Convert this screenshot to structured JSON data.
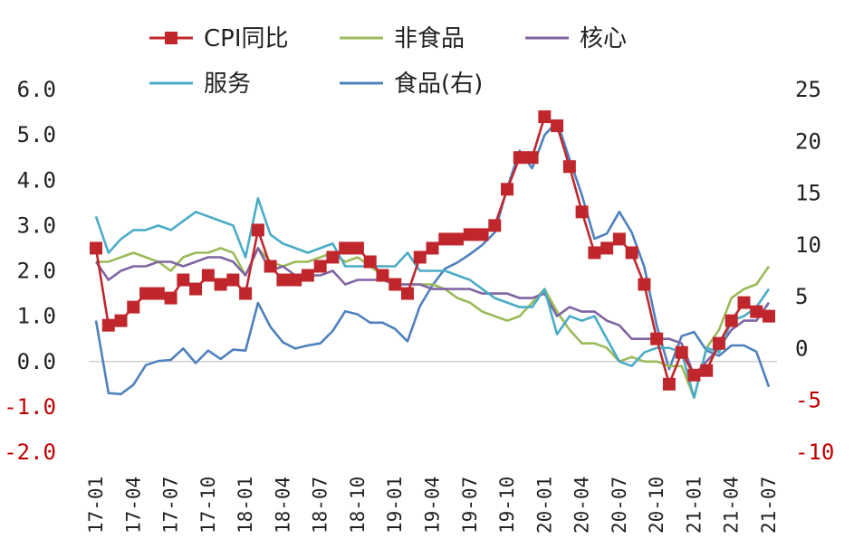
{
  "chart_data": {
    "type": "line",
    "title": "",
    "xlabel": "",
    "ylabel": "",
    "x": [
      "17-01",
      "17-02",
      "17-03",
      "17-04",
      "17-05",
      "17-06",
      "17-07",
      "17-08",
      "17-09",
      "17-10",
      "17-11",
      "17-12",
      "18-01",
      "18-02",
      "18-03",
      "18-04",
      "18-05",
      "18-06",
      "18-07",
      "18-08",
      "18-09",
      "18-10",
      "18-11",
      "18-12",
      "19-01",
      "19-02",
      "19-03",
      "19-04",
      "19-05",
      "19-06",
      "19-07",
      "19-08",
      "19-09",
      "19-10",
      "19-11",
      "19-12",
      "20-01",
      "20-02",
      "20-03",
      "20-04",
      "20-05",
      "20-06",
      "20-07",
      "20-08",
      "20-09",
      "20-10",
      "20-11",
      "20-12",
      "21-01",
      "21-02",
      "21-03",
      "21-04",
      "21-05",
      "21-06",
      "21-07"
    ],
    "x_tick_labels": [
      "17-01",
      "17-04",
      "17-07",
      "17-10",
      "18-01",
      "18-04",
      "18-07",
      "18-10",
      "19-01",
      "19-04",
      "19-07",
      "19-10",
      "20-01",
      "20-04",
      "20-07",
      "20-10",
      "21-01",
      "21-04",
      "21-07"
    ],
    "y_left": {
      "ylim": [
        -2.0,
        6.0
      ],
      "ticks": [
        "6.0",
        "5.0",
        "4.0",
        "3.0",
        "2.0",
        "1.0",
        "0.0",
        "-1.0",
        "-2.0"
      ],
      "negative_tick_color": "#c00000"
    },
    "y_right": {
      "ylim": [
        -10,
        25
      ],
      "ticks": [
        "25",
        "20",
        "15",
        "10",
        "5",
        "0",
        "-5",
        "-10"
      ],
      "negative_tick_color": "#c00000"
    },
    "legend": {
      "placement": "top",
      "entries": [
        "CPI同比",
        "非食品",
        "核心",
        "服务",
        "食品(右)"
      ]
    },
    "grid": false,
    "series": [
      {
        "name": "CPI同比",
        "axis": "left",
        "color": "#c0272d",
        "marker": "square",
        "values": [
          2.5,
          0.8,
          0.9,
          1.2,
          1.5,
          1.5,
          1.4,
          1.8,
          1.6,
          1.9,
          1.7,
          1.8,
          1.5,
          2.9,
          2.1,
          1.8,
          1.8,
          1.9,
          2.1,
          2.3,
          2.5,
          2.5,
          2.2,
          1.9,
          1.7,
          1.5,
          2.3,
          2.5,
          2.7,
          2.7,
          2.8,
          2.8,
          3.0,
          3.8,
          4.5,
          4.5,
          5.4,
          5.2,
          4.3,
          3.3,
          2.4,
          2.5,
          2.7,
          2.4,
          1.7,
          0.5,
          -0.5,
          0.2,
          -0.3,
          -0.2,
          0.4,
          0.9,
          1.3,
          1.1,
          1.0
        ]
      },
      {
        "name": "非食品",
        "axis": "left",
        "color": "#9bbb59",
        "marker": "none",
        "values": [
          2.2,
          2.2,
          2.3,
          2.4,
          2.3,
          2.2,
          2.0,
          2.3,
          2.4,
          2.4,
          2.5,
          2.4,
          1.9,
          2.5,
          2.2,
          2.1,
          2.2,
          2.2,
          2.3,
          2.4,
          2.2,
          2.3,
          2.1,
          1.9,
          1.7,
          1.7,
          1.7,
          1.7,
          1.6,
          1.4,
          1.3,
          1.1,
          1.0,
          0.9,
          1.0,
          1.3,
          1.6,
          1.1,
          0.7,
          0.4,
          0.4,
          0.3,
          0.0,
          0.1,
          0.0,
          0.0,
          -0.1,
          -0.1,
          -0.8,
          0.3,
          0.7,
          1.4,
          1.6,
          1.7,
          2.1
        ]
      },
      {
        "name": "核心",
        "axis": "left",
        "color": "#8064a2",
        "marker": "none",
        "values": [
          2.2,
          1.8,
          2.0,
          2.1,
          2.1,
          2.2,
          2.2,
          2.1,
          2.2,
          2.3,
          2.3,
          2.2,
          1.9,
          2.5,
          2.0,
          2.1,
          1.9,
          1.9,
          1.9,
          2.0,
          1.7,
          1.8,
          1.8,
          1.8,
          1.7,
          1.7,
          1.7,
          1.6,
          1.6,
          1.6,
          1.6,
          1.5,
          1.5,
          1.5,
          1.4,
          1.4,
          1.5,
          1.0,
          1.2,
          1.1,
          1.1,
          0.9,
          0.8,
          0.5,
          0.5,
          0.5,
          0.5,
          0.4,
          -0.3,
          0.0,
          0.3,
          0.7,
          0.9,
          0.9,
          1.3
        ]
      },
      {
        "name": "服务",
        "axis": "left",
        "color": "#4bacc6",
        "marker": "none",
        "values": [
          3.2,
          2.4,
          2.7,
          2.9,
          2.9,
          3.0,
          2.9,
          3.1,
          3.3,
          3.2,
          3.1,
          3.0,
          2.3,
          3.6,
          2.8,
          2.6,
          2.5,
          2.4,
          2.5,
          2.6,
          2.1,
          2.1,
          2.1,
          2.1,
          2.1,
          2.4,
          2.0,
          2.0,
          2.0,
          1.9,
          1.8,
          1.6,
          1.4,
          1.3,
          1.2,
          1.2,
          1.6,
          0.6,
          1.0,
          0.9,
          1.0,
          0.5,
          0.0,
          -0.1,
          0.2,
          0.3,
          0.3,
          0.2,
          -0.8,
          0.3,
          0.2,
          0.9,
          1.0,
          1.2,
          1.6
        ]
      },
      {
        "name": "食品(右)",
        "axis": "right",
        "color": "#4f81bd",
        "marker": "none",
        "values": [
          2.7,
          -4.3,
          -4.4,
          -3.5,
          -1.6,
          -1.2,
          -1.1,
          0.0,
          -1.4,
          -0.2,
          -1.0,
          -0.1,
          -0.2,
          4.4,
          2.1,
          0.6,
          0.0,
          0.3,
          0.5,
          1.7,
          3.6,
          3.3,
          2.5,
          2.5,
          1.9,
          0.7,
          4.1,
          6.1,
          7.7,
          8.3,
          9.1,
          10.0,
          11.2,
          15.5,
          19.1,
          17.4,
          20.6,
          21.9,
          18.3,
          14.8,
          10.6,
          11.1,
          13.2,
          11.2,
          7.9,
          2.2,
          -2.0,
          1.2,
          1.6,
          -0.2,
          -0.7,
          0.3,
          0.3,
          -0.3,
          -3.7
        ]
      }
    ]
  }
}
